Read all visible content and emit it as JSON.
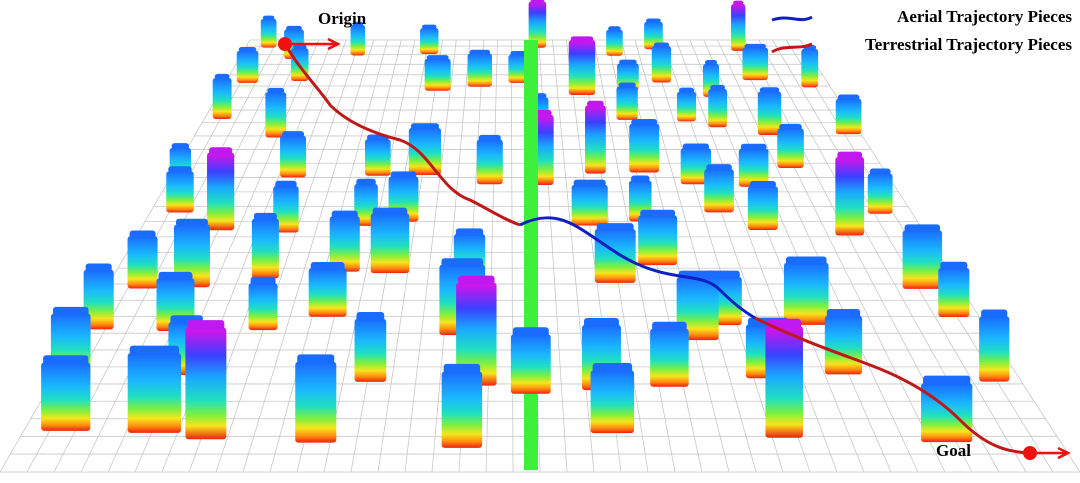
{
  "labels": {
    "origin": "Origin",
    "goal": "Goal"
  },
  "legend": [
    {
      "name": "Aerial Trajectory Pieces"
    },
    {
      "name": "Terrestrial Trajectory Pieces"
    }
  ]
}
